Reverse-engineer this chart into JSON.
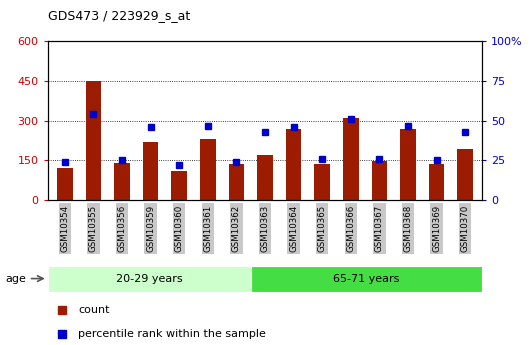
{
  "title": "GDS473 / 223929_s_at",
  "samples": [
    "GSM10354",
    "GSM10355",
    "GSM10356",
    "GSM10359",
    "GSM10360",
    "GSM10361",
    "GSM10362",
    "GSM10363",
    "GSM10364",
    "GSM10365",
    "GSM10366",
    "GSM10367",
    "GSM10368",
    "GSM10369",
    "GSM10370"
  ],
  "counts": [
    120,
    450,
    140,
    220,
    110,
    230,
    138,
    170,
    270,
    138,
    310,
    148,
    270,
    135,
    195
  ],
  "percentile_ranks": [
    24,
    54,
    25,
    46,
    22,
    47,
    24,
    43,
    46,
    26,
    51,
    26,
    47,
    25,
    43
  ],
  "group_labels": [
    "20-29 years",
    "65-71 years"
  ],
  "group_ranges": [
    7,
    8
  ],
  "left_ylim": [
    0,
    600
  ],
  "right_ylim": [
    0,
    100
  ],
  "left_yticks": [
    0,
    150,
    300,
    450,
    600
  ],
  "right_yticks": [
    0,
    25,
    50,
    75,
    100
  ],
  "right_yticklabels": [
    "0",
    "25",
    "50",
    "75",
    "100%"
  ],
  "bar_color": "#9b1c00",
  "marker_color": "#0000cc",
  "bar_width": 0.55,
  "group1_bg": "#ccffcc",
  "group2_bg": "#44dd44",
  "legend_items": [
    "count",
    "percentile rank within the sample"
  ],
  "grid_color": "black",
  "left_label_color": "#cc0000",
  "right_label_color": "#0000cc",
  "tick_bg_color": "#c8c8c8"
}
